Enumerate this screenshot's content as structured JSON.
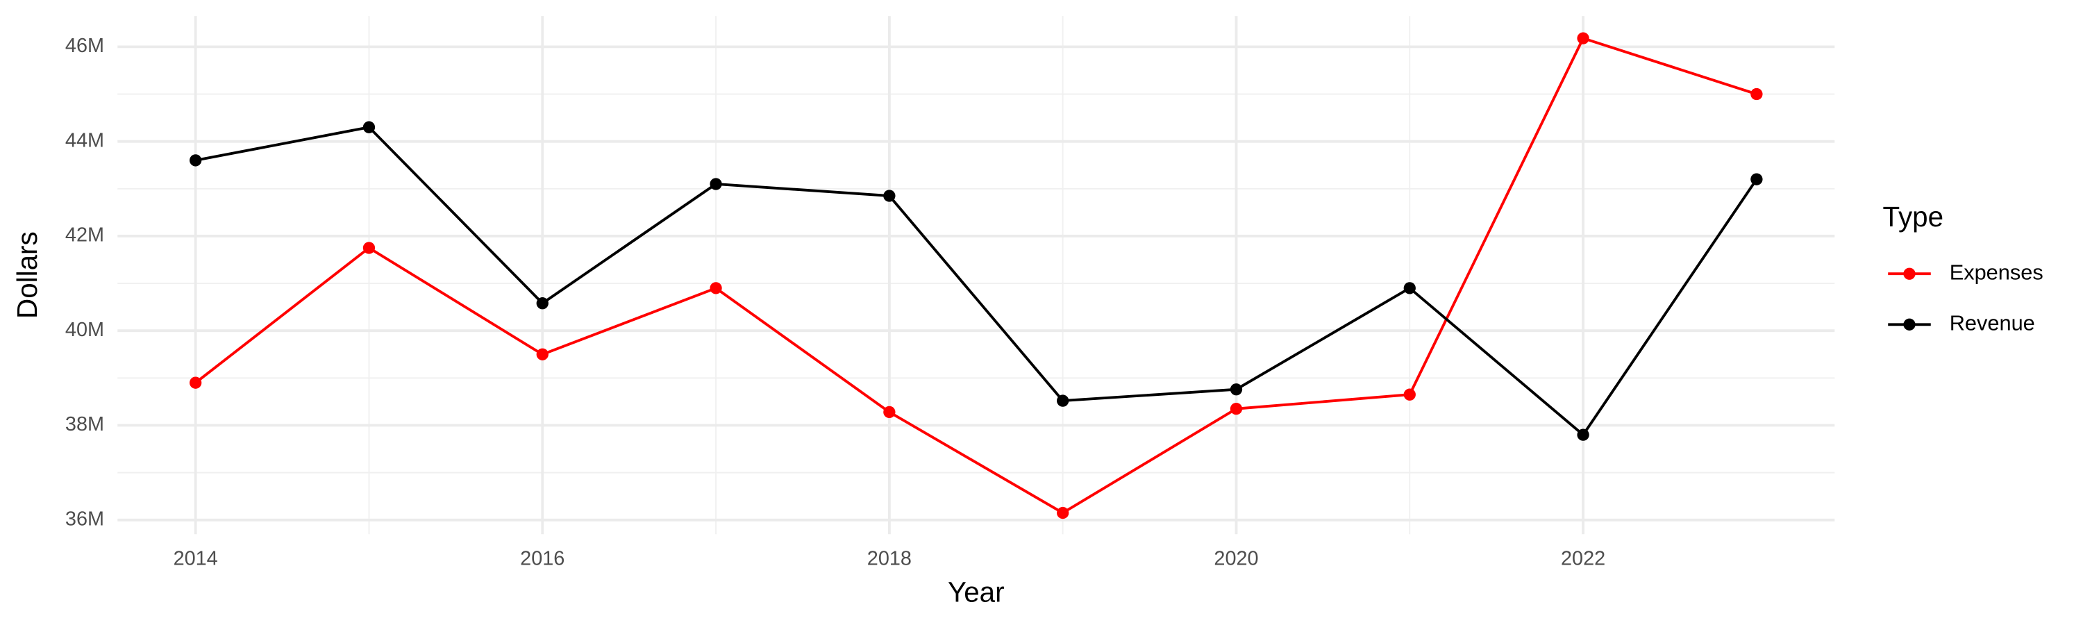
{
  "chart_data": {
    "type": "line",
    "x_label": "Year",
    "y_label": "Dollars",
    "x": [
      2014,
      2015,
      2016,
      2017,
      2018,
      2019,
      2020,
      2021,
      2022,
      2023
    ],
    "series": [
      {
        "name": "Expenses",
        "color": "#ff0000",
        "values": [
          38900000,
          41750000,
          39500000,
          40900000,
          38280000,
          36150000,
          38350000,
          38650000,
          46180000,
          45000000
        ]
      },
      {
        "name": "Revenue",
        "color": "#000000",
        "values": [
          43600000,
          44300000,
          40580000,
          43100000,
          42850000,
          38520000,
          38760000,
          40900000,
          37800000,
          43200000
        ]
      }
    ],
    "xlim": [
      2013.55,
      2023.45
    ],
    "xticks": [
      2014,
      2016,
      2018,
      2020,
      2022
    ],
    "ylim": [
      35700000,
      46650000
    ],
    "yticks": [
      {
        "value": 36000000,
        "label": "36M"
      },
      {
        "value": 38000000,
        "label": "38M"
      },
      {
        "value": 40000000,
        "label": "40M"
      },
      {
        "value": 42000000,
        "label": "42M"
      },
      {
        "value": 44000000,
        "label": "44M"
      },
      {
        "value": 46000000,
        "label": "46M"
      }
    ],
    "grid": true,
    "legend_title": "Type",
    "legend_position": "right"
  }
}
